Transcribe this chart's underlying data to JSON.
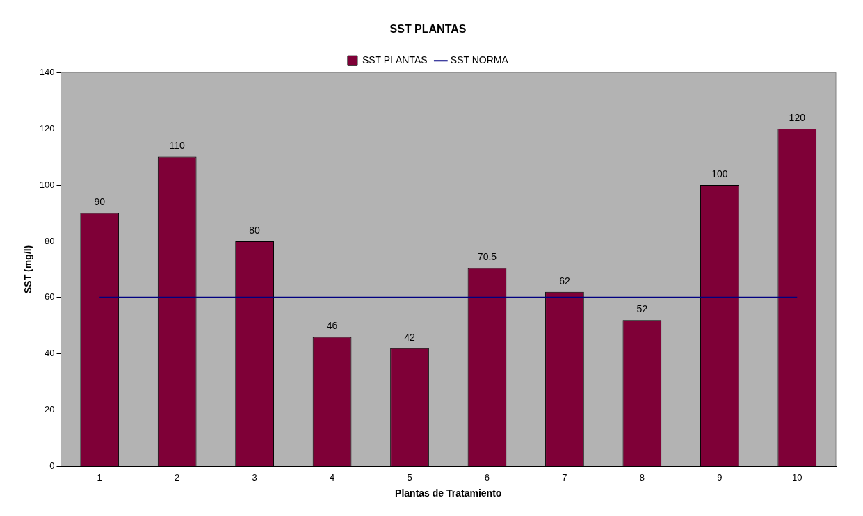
{
  "chart_data": {
    "type": "bar",
    "title": "SST PLANTAS",
    "xlabel": "Plantas de Tratamiento",
    "ylabel": "SST (mg/l)",
    "categories": [
      "1",
      "2",
      "3",
      "4",
      "5",
      "6",
      "7",
      "8",
      "9",
      "10"
    ],
    "series": [
      {
        "name": "SST PLANTAS",
        "color": "#7f0037",
        "values": [
          90,
          110,
          80,
          46,
          42,
          70.5,
          62,
          52,
          100,
          120
        ],
        "value_labels": [
          "90",
          "110",
          "80",
          "46",
          "42",
          "70.5",
          "62",
          "52",
          "100",
          "120"
        ]
      },
      {
        "name": "SST NORMA",
        "type": "line",
        "color": "#000080",
        "values": [
          60,
          60,
          60,
          60,
          60,
          60,
          60,
          60,
          60,
          60
        ]
      }
    ],
    "ylim": [
      0,
      140
    ],
    "yticks": [
      0,
      20,
      40,
      60,
      80,
      100,
      120,
      140
    ],
    "grid": false,
    "legend": "top",
    "marker": "none"
  }
}
